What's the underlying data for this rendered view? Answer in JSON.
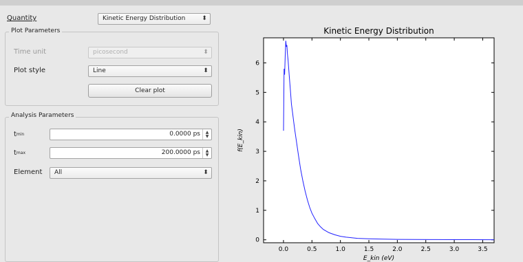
{
  "quantity": {
    "label": "Quantity",
    "value": "Kinetic Energy Distribution"
  },
  "plot_parameters": {
    "title": "Plot Parameters",
    "time_unit_label": "Time unit",
    "time_unit_value": "picosecond",
    "plot_style_label": "Plot style",
    "plot_style_value": "Line",
    "clear_plot_label": "Clear plot"
  },
  "analysis_parameters": {
    "title": "Analysis Parameters",
    "tmin_label": "t",
    "tmin_sub": "min",
    "tmin_value": "0.0000 ps",
    "tmax_label": "t",
    "tmax_sub": "max",
    "tmax_value": "200.0000 ps",
    "element_label": "Element",
    "element_value": "All"
  },
  "chart_data": {
    "type": "line",
    "title": "Kinetic Energy Distribution",
    "xlabel": "E_kin (eV)",
    "ylabel": "f(E_kin)",
    "xlim": [
      -0.35,
      3.7
    ],
    "ylim": [
      -0.1,
      6.85
    ],
    "x_ticks": [
      "0.0",
      "0.5",
      "1.0",
      "1.5",
      "2.0",
      "2.5",
      "3.0",
      "3.5"
    ],
    "y_ticks": [
      "0",
      "1",
      "2",
      "3",
      "4",
      "5",
      "6"
    ],
    "line_color": "#1f1fff",
    "series": [
      {
        "x": [
          0.0,
          0.01,
          0.02,
          0.03,
          0.04,
          0.05,
          0.06,
          0.07,
          0.08,
          0.1,
          0.12,
          0.14,
          0.16,
          0.18,
          0.2,
          0.23,
          0.26,
          0.3,
          0.34,
          0.38,
          0.42,
          0.46,
          0.5,
          0.55,
          0.6,
          0.65,
          0.7,
          0.8,
          0.9,
          1.0,
          1.1,
          1.2,
          1.3,
          1.5,
          1.7,
          2.0,
          2.3,
          2.6,
          3.0,
          3.3,
          3.7
        ],
        "y": [
          3.7,
          5.8,
          5.6,
          6.2,
          6.75,
          6.55,
          6.6,
          6.3,
          6.1,
          5.6,
          5.1,
          4.6,
          4.3,
          4.0,
          3.7,
          3.3,
          2.9,
          2.4,
          2.0,
          1.65,
          1.35,
          1.1,
          0.9,
          0.72,
          0.55,
          0.44,
          0.35,
          0.24,
          0.17,
          0.12,
          0.09,
          0.07,
          0.05,
          0.035,
          0.025,
          0.015,
          0.01,
          0.008,
          0.005,
          0.004,
          0.003
        ]
      }
    ]
  }
}
